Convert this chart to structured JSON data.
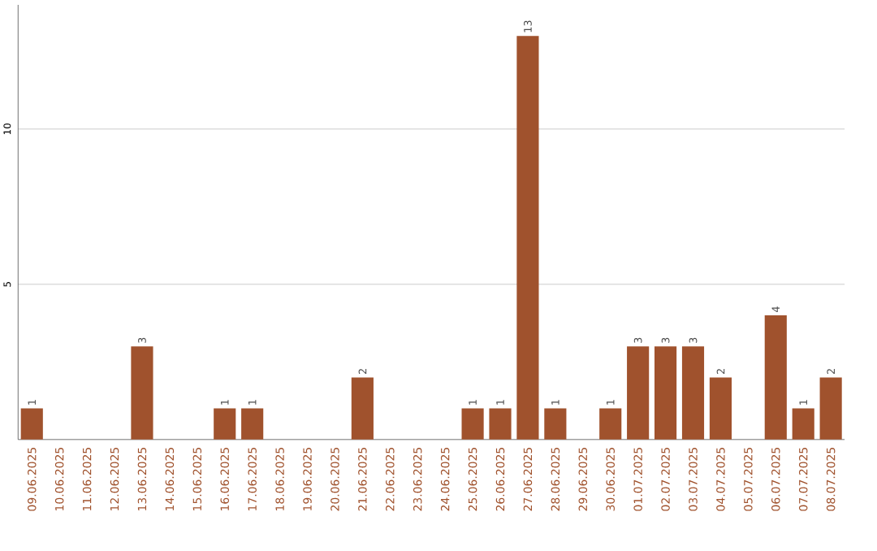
{
  "chart_data": {
    "type": "bar",
    "categories": [
      "09.06.2025",
      "10.06.2025",
      "11.06.2025",
      "12.06.2025",
      "13.06.2025",
      "14.06.2025",
      "15.06.2025",
      "16.06.2025",
      "17.06.2025",
      "18.06.2025",
      "19.06.2025",
      "20.06.2025",
      "21.06.2025",
      "22.06.2025",
      "23.06.2025",
      "24.06.2025",
      "25.06.2025",
      "26.06.2025",
      "27.06.2025",
      "28.06.2025",
      "29.06.2025",
      "30.06.2025",
      "01.07.2025",
      "02.07.2025",
      "03.07.2025",
      "04.07.2025",
      "05.07.2025",
      "06.07.2025",
      "07.07.2025",
      "08.07.2025"
    ],
    "values": [
      1,
      0,
      0,
      0,
      3,
      0,
      0,
      1,
      1,
      0,
      0,
      0,
      2,
      0,
      0,
      0,
      1,
      1,
      13,
      1,
      0,
      1,
      3,
      3,
      3,
      2,
      0,
      4,
      1,
      2
    ],
    "value_labels": [
      "1",
      null,
      null,
      null,
      "3",
      null,
      null,
      "1",
      "1",
      null,
      null,
      null,
      "2",
      null,
      null,
      null,
      "1",
      "1",
      "13",
      "1",
      null,
      "1",
      "3",
      "3",
      "3",
      "2",
      null,
      "4",
      "1",
      "2"
    ],
    "color": "#a0522d",
    "ylim": [
      0,
      14
    ],
    "yticks": [
      5,
      10
    ],
    "grid": "y"
  }
}
